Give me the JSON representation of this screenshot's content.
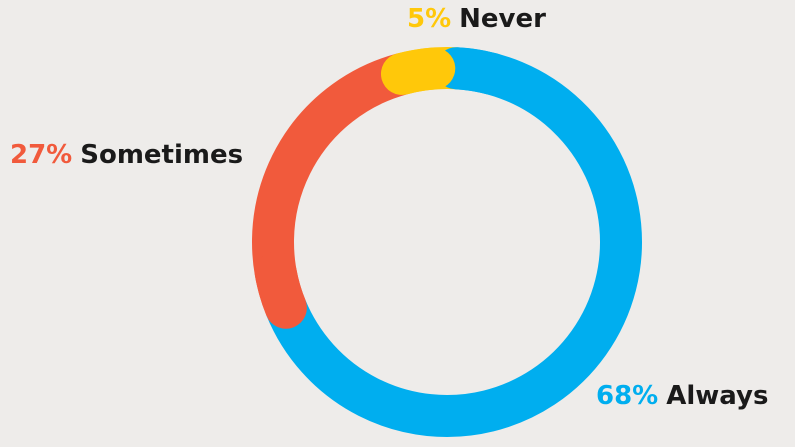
{
  "chart_data": {
    "type": "pie",
    "variant": "donut",
    "categories": [
      "Always",
      "Sometimes",
      "Never"
    ],
    "values": [
      68,
      27,
      5
    ],
    "labels": [
      {
        "category": "Never",
        "percent": "5%"
      },
      {
        "category": "Sometimes",
        "percent": "27%"
      },
      {
        "category": "Always",
        "percent": "68%"
      }
    ],
    "colors": {
      "Always": "#00aeef",
      "Sometimes": "#f15a3c",
      "Never": "#ffc80a"
    },
    "label_color": "#1a1a1a",
    "background": "#eeecea",
    "legend": "none"
  }
}
